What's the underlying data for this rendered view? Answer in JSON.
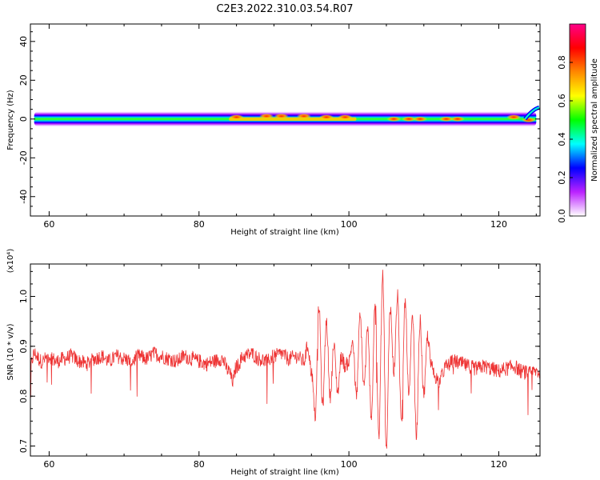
{
  "figure": {
    "title": "C2E3.2022.310.03.54.R07"
  },
  "chart_data": [
    {
      "type": "heatmap",
      "title": "C2E3.2022.310.03.54.R07",
      "xlabel": "Height of straight line (km)",
      "ylabel": "Frequency (Hz)",
      "xlim": [
        57.5,
        125.5
      ],
      "ylim": [
        -50,
        49
      ],
      "xticks": [
        60,
        80,
        100,
        120
      ],
      "yticks": [
        -40,
        -20,
        0,
        20,
        40
      ],
      "ridge": {
        "frequency": 0,
        "from": 58,
        "to": 125
      },
      "hotspots": [
        {
          "x": 85,
          "y": 1
        },
        {
          "x": 89,
          "y": 1.5
        },
        {
          "x": 91,
          "y": 1.5
        },
        {
          "x": 94,
          "y": 1.5
        },
        {
          "x": 97,
          "y": 1
        },
        {
          "x": 99.5,
          "y": 1
        },
        {
          "x": 106,
          "y": 0
        },
        {
          "x": 108,
          "y": 0
        },
        {
          "x": 109.5,
          "y": 0
        },
        {
          "x": 113,
          "y": 0
        },
        {
          "x": 114.5,
          "y": 0
        },
        {
          "x": 122,
          "y": 1
        },
        {
          "x": 124,
          "y": -0.5
        }
      ],
      "colorbar": {
        "label": "Normalized spectral amplitude",
        "range": [
          0,
          1
        ],
        "ticks": [
          "0.0",
          "0.2",
          "0.4",
          "0.6",
          "0.8"
        ],
        "colors": [
          "#ffffff",
          "#bb22ff",
          "#0000ff",
          "#00ffff",
          "#00ff00",
          "#ffff00",
          "#ff8800",
          "#ff0000",
          "#ff0088"
        ]
      },
      "grid": false,
      "legend": "none"
    },
    {
      "type": "line",
      "xlabel": "Height of straight line (km)",
      "ylabel": "SNR (10 * v/v)",
      "yscale_label": "(x10⁴)",
      "xlim": [
        57.5,
        125.5
      ],
      "ylim": [
        0.68,
        1.065
      ],
      "xticks": [
        60,
        80,
        100,
        120
      ],
      "yticks": [
        0.7,
        0.8,
        0.9,
        1.0
      ],
      "ytick_labels": [
        "0.7",
        "0.8",
        "0.9",
        "1.0"
      ],
      "series": [
        {
          "color": "#ee3333",
          "x": [
            57.5,
            58,
            59,
            60,
            61,
            62,
            63,
            64,
            65,
            66,
            67,
            68,
            69,
            70,
            71,
            72,
            73,
            74,
            75,
            76,
            77,
            78,
            79,
            80,
            81,
            82,
            83,
            84,
            84.5,
            85,
            86,
            87,
            88,
            89,
            90,
            91,
            92,
            93,
            94,
            94.5,
            95,
            95.5,
            96,
            96.5,
            97,
            97.5,
            98,
            98.5,
            99,
            99.5,
            100,
            100.5,
            101,
            101.5,
            102,
            102.5,
            103,
            103.5,
            104,
            104.5,
            105,
            105.5,
            106,
            106.5,
            107,
            107.5,
            108,
            108.5,
            109,
            109.5,
            110,
            110.5,
            111,
            111.5,
            112,
            113,
            114,
            115,
            116,
            117,
            118,
            119,
            120,
            121,
            122,
            123,
            124,
            125,
            125.5
          ],
          "y": [
            0.86,
            0.885,
            0.87,
            0.88,
            0.87,
            0.875,
            0.88,
            0.87,
            0.865,
            0.875,
            0.88,
            0.87,
            0.88,
            0.875,
            0.87,
            0.88,
            0.875,
            0.885,
            0.88,
            0.875,
            0.87,
            0.88,
            0.875,
            0.87,
            0.865,
            0.87,
            0.875,
            0.85,
            0.83,
            0.86,
            0.88,
            0.885,
            0.875,
            0.87,
            0.88,
            0.885,
            0.875,
            0.88,
            0.87,
            0.9,
            0.85,
            0.76,
            0.98,
            0.78,
            0.95,
            0.8,
            0.9,
            0.81,
            0.88,
            0.86,
            0.87,
            0.91,
            0.8,
            0.96,
            0.82,
            0.93,
            0.76,
            0.99,
            0.72,
            1.05,
            0.69,
            0.98,
            0.85,
            1.0,
            0.74,
            0.99,
            0.8,
            0.96,
            0.72,
            0.95,
            0.8,
            0.92,
            0.86,
            0.84,
            0.83,
            0.86,
            0.87,
            0.865,
            0.86,
            0.855,
            0.86,
            0.855,
            0.85,
            0.855,
            0.86,
            0.85,
            0.845,
            0.85,
            0.845
          ]
        }
      ],
      "grid": false,
      "legend": "none"
    }
  ]
}
